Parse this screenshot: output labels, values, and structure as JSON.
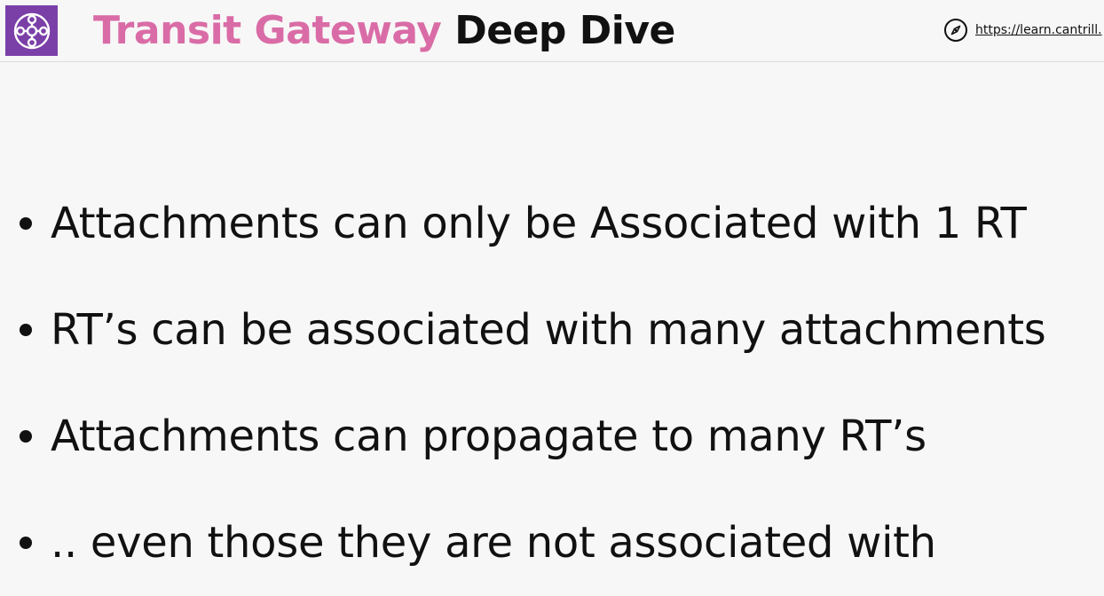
{
  "header": {
    "logo_icon": "transit-gateway-hub-icon",
    "logo_color": "#7b3fa8",
    "title_accent": "Transit Gateway",
    "title_main": "Deep Dive",
    "accent_color": "#d96ca6",
    "url_icon": "compass-icon",
    "url_text": "https://learn.cantrill."
  },
  "bullets": [
    {
      "text": "Attachments can only be Associated with 1 RT"
    },
    {
      "text": "RT’s can be associated with many attachments"
    },
    {
      "text": "Attachments can propagate to many RT’s"
    },
    {
      "text": ".. even those they are not associated with"
    }
  ]
}
